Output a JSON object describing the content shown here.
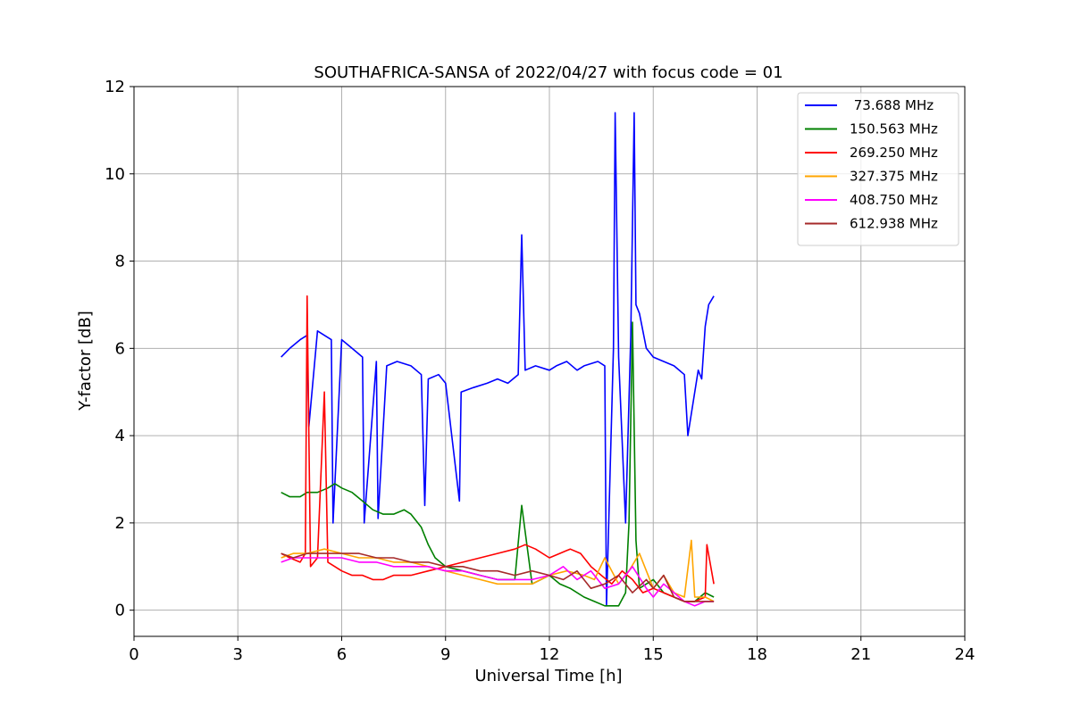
{
  "chart_data": {
    "type": "line",
    "title": "SOUTHAFRICA-SANSA of 2022/04/27 with focus code = 01",
    "xlabel": "Universal Time [h]",
    "ylabel": "Y-factor [dB]",
    "xlim": [
      0,
      24
    ],
    "ylim": [
      -0.6,
      12
    ],
    "xticks": [
      0,
      3,
      6,
      9,
      12,
      15,
      18,
      21,
      24
    ],
    "yticks": [
      0,
      2,
      4,
      6,
      8,
      10,
      12
    ],
    "grid": true,
    "legend_position": "top-right",
    "series": [
      {
        "name": " 73.688 MHz",
        "color": "#0000ff",
        "x": [
          4.25,
          4.5,
          4.8,
          5.0,
          5.05,
          5.3,
          5.5,
          5.7,
          5.75,
          6.0,
          6.3,
          6.6,
          6.65,
          7.0,
          7.05,
          7.3,
          7.6,
          8.0,
          8.3,
          8.4,
          8.5,
          8.8,
          9.0,
          9.4,
          9.45,
          9.8,
          10.2,
          10.5,
          10.8,
          11.1,
          11.2,
          11.3,
          11.6,
          12.0,
          12.2,
          12.5,
          12.8,
          13.0,
          13.4,
          13.6,
          13.65,
          13.85,
          13.9,
          14.0,
          14.2,
          14.35,
          14.45,
          14.5,
          14.6,
          14.8,
          15.0,
          15.3,
          15.6,
          15.9,
          16.0,
          16.3,
          16.4,
          16.5,
          16.6,
          16.75
        ],
        "y": [
          5.8,
          6.0,
          6.2,
          6.3,
          4.2,
          6.4,
          6.3,
          6.2,
          2.0,
          6.2,
          6.0,
          5.8,
          2.0,
          5.7,
          2.1,
          5.6,
          5.7,
          5.6,
          5.4,
          2.4,
          5.3,
          5.4,
          5.2,
          2.5,
          5.0,
          5.1,
          5.2,
          5.3,
          5.2,
          5.4,
          8.6,
          5.5,
          5.6,
          5.5,
          5.6,
          5.7,
          5.5,
          5.6,
          5.7,
          5.6,
          0.1,
          6.0,
          11.4,
          5.8,
          2.0,
          6.3,
          11.4,
          7.0,
          6.8,
          6.0,
          5.8,
          5.7,
          5.6,
          5.4,
          4.0,
          5.5,
          5.3,
          6.5,
          7.0,
          7.2
        ]
      },
      {
        "name": "150.563 MHz",
        "color": "#008000",
        "x": [
          4.25,
          4.5,
          4.8,
          5.0,
          5.3,
          5.6,
          5.8,
          6.0,
          6.3,
          6.6,
          6.9,
          7.2,
          7.5,
          7.8,
          8.0,
          8.3,
          8.5,
          8.7,
          9.0,
          9.5,
          10.0,
          10.5,
          11.0,
          11.2,
          11.5,
          12.0,
          12.3,
          12.6,
          13.0,
          13.3,
          13.6,
          14.0,
          14.2,
          14.3,
          14.4,
          14.5,
          14.6,
          14.8,
          15.0,
          15.3,
          15.6,
          15.9,
          16.2,
          16.5,
          16.75
        ],
        "y": [
          2.7,
          2.6,
          2.6,
          2.7,
          2.7,
          2.8,
          2.9,
          2.8,
          2.7,
          2.5,
          2.3,
          2.2,
          2.2,
          2.3,
          2.2,
          1.9,
          1.5,
          1.2,
          1.0,
          0.9,
          0.8,
          0.7,
          0.7,
          2.4,
          0.6,
          0.8,
          0.6,
          0.5,
          0.3,
          0.2,
          0.1,
          0.1,
          0.4,
          2.0,
          6.6,
          1.6,
          0.5,
          0.6,
          0.7,
          0.4,
          0.3,
          0.2,
          0.2,
          0.4,
          0.3
        ]
      },
      {
        "name": "269.250 MHz",
        "color": "#ff0000",
        "x": [
          4.25,
          4.5,
          4.8,
          4.95,
          5.0,
          5.1,
          5.3,
          5.5,
          5.6,
          5.8,
          6.0,
          6.3,
          6.6,
          6.9,
          7.2,
          7.5,
          8.0,
          8.5,
          9.0,
          9.5,
          10.0,
          10.5,
          11.0,
          11.3,
          11.6,
          12.0,
          12.3,
          12.6,
          12.9,
          13.2,
          13.5,
          13.8,
          14.1,
          14.4,
          14.7,
          15.0,
          15.3,
          15.6,
          15.9,
          16.2,
          16.5,
          16.55,
          16.75
        ],
        "y": [
          1.3,
          1.2,
          1.1,
          1.3,
          7.2,
          1.0,
          1.2,
          5.0,
          1.1,
          1.0,
          0.9,
          0.8,
          0.8,
          0.7,
          0.7,
          0.8,
          0.8,
          0.9,
          1.0,
          1.1,
          1.2,
          1.3,
          1.4,
          1.5,
          1.4,
          1.2,
          1.3,
          1.4,
          1.3,
          1.0,
          0.8,
          0.6,
          0.9,
          0.7,
          0.4,
          0.5,
          0.4,
          0.3,
          0.2,
          0.2,
          0.3,
          1.5,
          0.6
        ]
      },
      {
        "name": "327.375 MHz",
        "color": "#ffa500",
        "x": [
          4.25,
          4.6,
          5.0,
          5.5,
          6.0,
          6.5,
          7.0,
          7.5,
          8.0,
          8.5,
          9.0,
          9.5,
          10.0,
          10.5,
          11.0,
          11.5,
          12.0,
          12.5,
          13.0,
          13.3,
          13.6,
          14.0,
          14.3,
          14.6,
          15.0,
          15.3,
          15.6,
          15.9,
          16.1,
          16.2,
          16.5,
          16.75
        ],
        "y": [
          1.2,
          1.3,
          1.3,
          1.4,
          1.3,
          1.2,
          1.2,
          1.1,
          1.1,
          1.0,
          0.9,
          0.8,
          0.7,
          0.6,
          0.6,
          0.6,
          0.8,
          0.9,
          0.8,
          0.7,
          1.2,
          0.6,
          0.9,
          1.3,
          0.5,
          0.8,
          0.4,
          0.3,
          1.6,
          0.3,
          0.3,
          0.2
        ]
      },
      {
        "name": "408.750 MHz",
        "color": "#ff00ff",
        "x": [
          4.25,
          4.6,
          5.0,
          5.5,
          6.0,
          6.5,
          7.0,
          7.5,
          8.0,
          8.5,
          9.0,
          9.5,
          10.0,
          10.5,
          11.0,
          11.5,
          12.0,
          12.4,
          12.8,
          13.2,
          13.6,
          14.0,
          14.4,
          14.8,
          15.0,
          15.3,
          15.6,
          15.9,
          16.2,
          16.5,
          16.75
        ],
        "y": [
          1.1,
          1.2,
          1.2,
          1.2,
          1.2,
          1.1,
          1.1,
          1.0,
          1.0,
          1.0,
          0.9,
          0.9,
          0.8,
          0.7,
          0.7,
          0.7,
          0.8,
          1.0,
          0.7,
          0.9,
          0.5,
          0.6,
          1.0,
          0.5,
          0.3,
          0.6,
          0.4,
          0.2,
          0.1,
          0.2,
          0.2
        ]
      },
      {
        "name": "612.938 MHz",
        "color": "#a52a2a",
        "x": [
          4.25,
          4.6,
          5.0,
          5.5,
          6.0,
          6.5,
          7.0,
          7.5,
          8.0,
          8.5,
          9.0,
          9.5,
          10.0,
          10.5,
          11.0,
          11.5,
          12.0,
          12.4,
          12.8,
          13.2,
          13.6,
          14.0,
          14.4,
          14.8,
          15.0,
          15.3,
          15.6,
          15.9,
          16.2,
          16.5,
          16.75
        ],
        "y": [
          1.3,
          1.2,
          1.3,
          1.3,
          1.3,
          1.3,
          1.2,
          1.2,
          1.1,
          1.1,
          1.0,
          1.0,
          0.9,
          0.9,
          0.8,
          0.9,
          0.8,
          0.7,
          0.9,
          0.5,
          0.6,
          0.8,
          0.4,
          0.7,
          0.5,
          0.8,
          0.3,
          0.2,
          0.2,
          0.2,
          0.2
        ]
      }
    ]
  }
}
